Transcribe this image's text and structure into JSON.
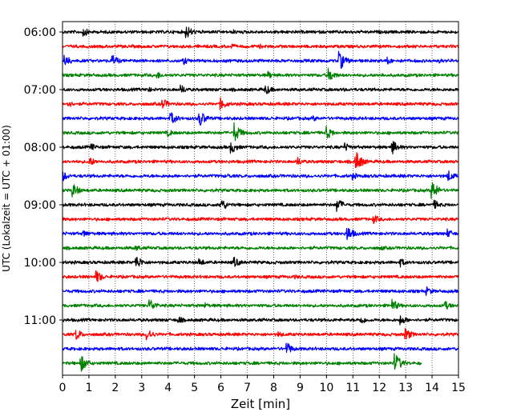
{
  "chart_data": {
    "type": "line",
    "title": "",
    "xlabel": "Zeit  [min]",
    "ylabel": "UTC (Lokalzeit = UTC + 01:00)",
    "xlim": [
      0,
      15
    ],
    "xticks": [
      "0",
      "1",
      "2",
      "3",
      "4",
      "5",
      "6",
      "7",
      "8",
      "9",
      "10",
      "11",
      "12",
      "13",
      "14",
      "15"
    ],
    "yticks": [
      {
        "label": "06:00",
        "trace_index": 0
      },
      {
        "label": "07:00",
        "trace_index": 4
      },
      {
        "label": "08:00",
        "trace_index": 8
      },
      {
        "label": "09:00",
        "trace_index": 12
      },
      {
        "label": "10:00",
        "trace_index": 16
      },
      {
        "label": "11:00",
        "trace_index": 20
      }
    ],
    "grid": "vertical dotted at each minute",
    "legend": "none",
    "trace_interval_minutes": 15,
    "start_time": "06:00",
    "trace_colors": [
      "#000000",
      "#ff0000",
      "#0000ff",
      "#008000"
    ],
    "traces": [
      {
        "start": "06:00",
        "end_min": 15,
        "events": [
          {
            "t": 0.8,
            "amp": 6
          },
          {
            "t": 4.7,
            "amp": 9
          },
          {
            "t": 6.5,
            "amp": 3
          }
        ]
      },
      {
        "start": "06:15",
        "end_min": 15,
        "events": [
          {
            "t": 6.4,
            "amp": 4
          },
          {
            "t": 7.5,
            "amp": 3
          }
        ]
      },
      {
        "start": "06:30",
        "end_min": 15,
        "events": [
          {
            "t": 0.1,
            "amp": 8
          },
          {
            "t": 1.9,
            "amp": 8
          },
          {
            "t": 4.6,
            "amp": 5
          },
          {
            "t": 10.5,
            "amp": 12
          },
          {
            "t": 12.3,
            "amp": 5
          },
          {
            "t": 14.3,
            "amp": 3
          }
        ]
      },
      {
        "start": "06:45",
        "end_min": 15,
        "events": [
          {
            "t": 3.6,
            "amp": 5
          },
          {
            "t": 7.8,
            "amp": 5
          },
          {
            "t": 10.1,
            "amp": 9
          },
          {
            "t": 12.1,
            "amp": 3
          }
        ]
      },
      {
        "start": "07:00",
        "end_min": 15,
        "events": [
          {
            "t": 3.2,
            "amp": 4
          },
          {
            "t": 4.5,
            "amp": 6
          },
          {
            "t": 7.7,
            "amp": 7
          },
          {
            "t": 10.6,
            "amp": 3
          }
        ]
      },
      {
        "start": "07:15",
        "end_min": 15,
        "events": [
          {
            "t": 0.2,
            "amp": 5
          },
          {
            "t": 3.8,
            "amp": 7
          },
          {
            "t": 6.0,
            "amp": 8
          }
        ]
      },
      {
        "start": "07:30",
        "end_min": 15,
        "events": [
          {
            "t": 4.1,
            "amp": 9
          },
          {
            "t": 5.2,
            "amp": 11
          },
          {
            "t": 9.5,
            "amp": 4
          }
        ]
      },
      {
        "start": "07:45",
        "end_min": 15,
        "events": [
          {
            "t": 4.0,
            "amp": 5
          },
          {
            "t": 6.5,
            "amp": 13
          },
          {
            "t": 10.0,
            "amp": 9
          }
        ]
      },
      {
        "start": "08:00",
        "end_min": 15,
        "events": [
          {
            "t": 1.1,
            "amp": 5
          },
          {
            "t": 6.4,
            "amp": 8
          },
          {
            "t": 10.7,
            "amp": 6
          },
          {
            "t": 12.5,
            "amp": 9
          }
        ]
      },
      {
        "start": "08:15",
        "end_min": 15,
        "events": [
          {
            "t": 1.0,
            "amp": 7
          },
          {
            "t": 8.9,
            "amp": 6
          },
          {
            "t": 11.1,
            "amp": 14
          }
        ]
      },
      {
        "start": "08:30",
        "end_min": 15,
        "events": [
          {
            "t": 0.0,
            "amp": 7
          },
          {
            "t": 6.3,
            "amp": 3
          },
          {
            "t": 11.0,
            "amp": 5
          },
          {
            "t": 14.6,
            "amp": 8
          }
        ]
      },
      {
        "start": "08:45",
        "end_min": 15,
        "events": [
          {
            "t": 0.4,
            "amp": 9
          },
          {
            "t": 14.0,
            "amp": 12
          }
        ]
      },
      {
        "start": "09:00",
        "end_min": 15,
        "events": [
          {
            "t": 6.0,
            "amp": 9
          },
          {
            "t": 10.4,
            "amp": 9
          },
          {
            "t": 14.1,
            "amp": 6
          }
        ]
      },
      {
        "start": "09:15",
        "end_min": 15,
        "events": [
          {
            "t": 11.8,
            "amp": 6
          }
        ]
      },
      {
        "start": "09:30",
        "end_min": 15,
        "events": [
          {
            "t": 0.8,
            "amp": 5
          },
          {
            "t": 10.8,
            "amp": 10
          },
          {
            "t": 14.6,
            "amp": 6
          }
        ]
      },
      {
        "start": "09:45",
        "end_min": 15,
        "events": [
          {
            "t": 2.8,
            "amp": 4
          },
          {
            "t": 12.1,
            "amp": 3
          }
        ]
      },
      {
        "start": "10:00",
        "end_min": 15,
        "events": [
          {
            "t": 2.8,
            "amp": 9
          },
          {
            "t": 5.2,
            "amp": 5
          },
          {
            "t": 6.5,
            "amp": 7
          },
          {
            "t": 12.8,
            "amp": 6
          }
        ]
      },
      {
        "start": "10:15",
        "end_min": 15,
        "events": [
          {
            "t": 1.3,
            "amp": 8
          },
          {
            "t": 8.8,
            "amp": 3
          }
        ]
      },
      {
        "start": "10:30",
        "end_min": 15,
        "events": [
          {
            "t": 13.8,
            "amp": 6
          }
        ]
      },
      {
        "start": "10:45",
        "end_min": 15,
        "events": [
          {
            "t": 3.3,
            "amp": 9
          },
          {
            "t": 5.4,
            "amp": 4
          },
          {
            "t": 12.5,
            "amp": 8
          },
          {
            "t": 14.5,
            "amp": 6
          }
        ]
      },
      {
        "start": "11:00",
        "end_min": 15,
        "events": [
          {
            "t": 4.4,
            "amp": 5
          },
          {
            "t": 11.3,
            "amp": 6
          },
          {
            "t": 12.8,
            "amp": 7
          }
        ]
      },
      {
        "start": "11:15",
        "end_min": 15,
        "events": [
          {
            "t": 0.5,
            "amp": 8
          },
          {
            "t": 3.2,
            "amp": 8
          },
          {
            "t": 8.2,
            "amp": 4
          },
          {
            "t": 13.0,
            "amp": 8
          }
        ]
      },
      {
        "start": "11:30",
        "end_min": 15,
        "events": [
          {
            "t": 8.5,
            "amp": 8
          }
        ]
      },
      {
        "start": "11:45",
        "end_min": 13.6,
        "events": [
          {
            "t": 0.7,
            "amp": 11
          },
          {
            "t": 12.6,
            "amp": 13
          }
        ]
      }
    ]
  }
}
